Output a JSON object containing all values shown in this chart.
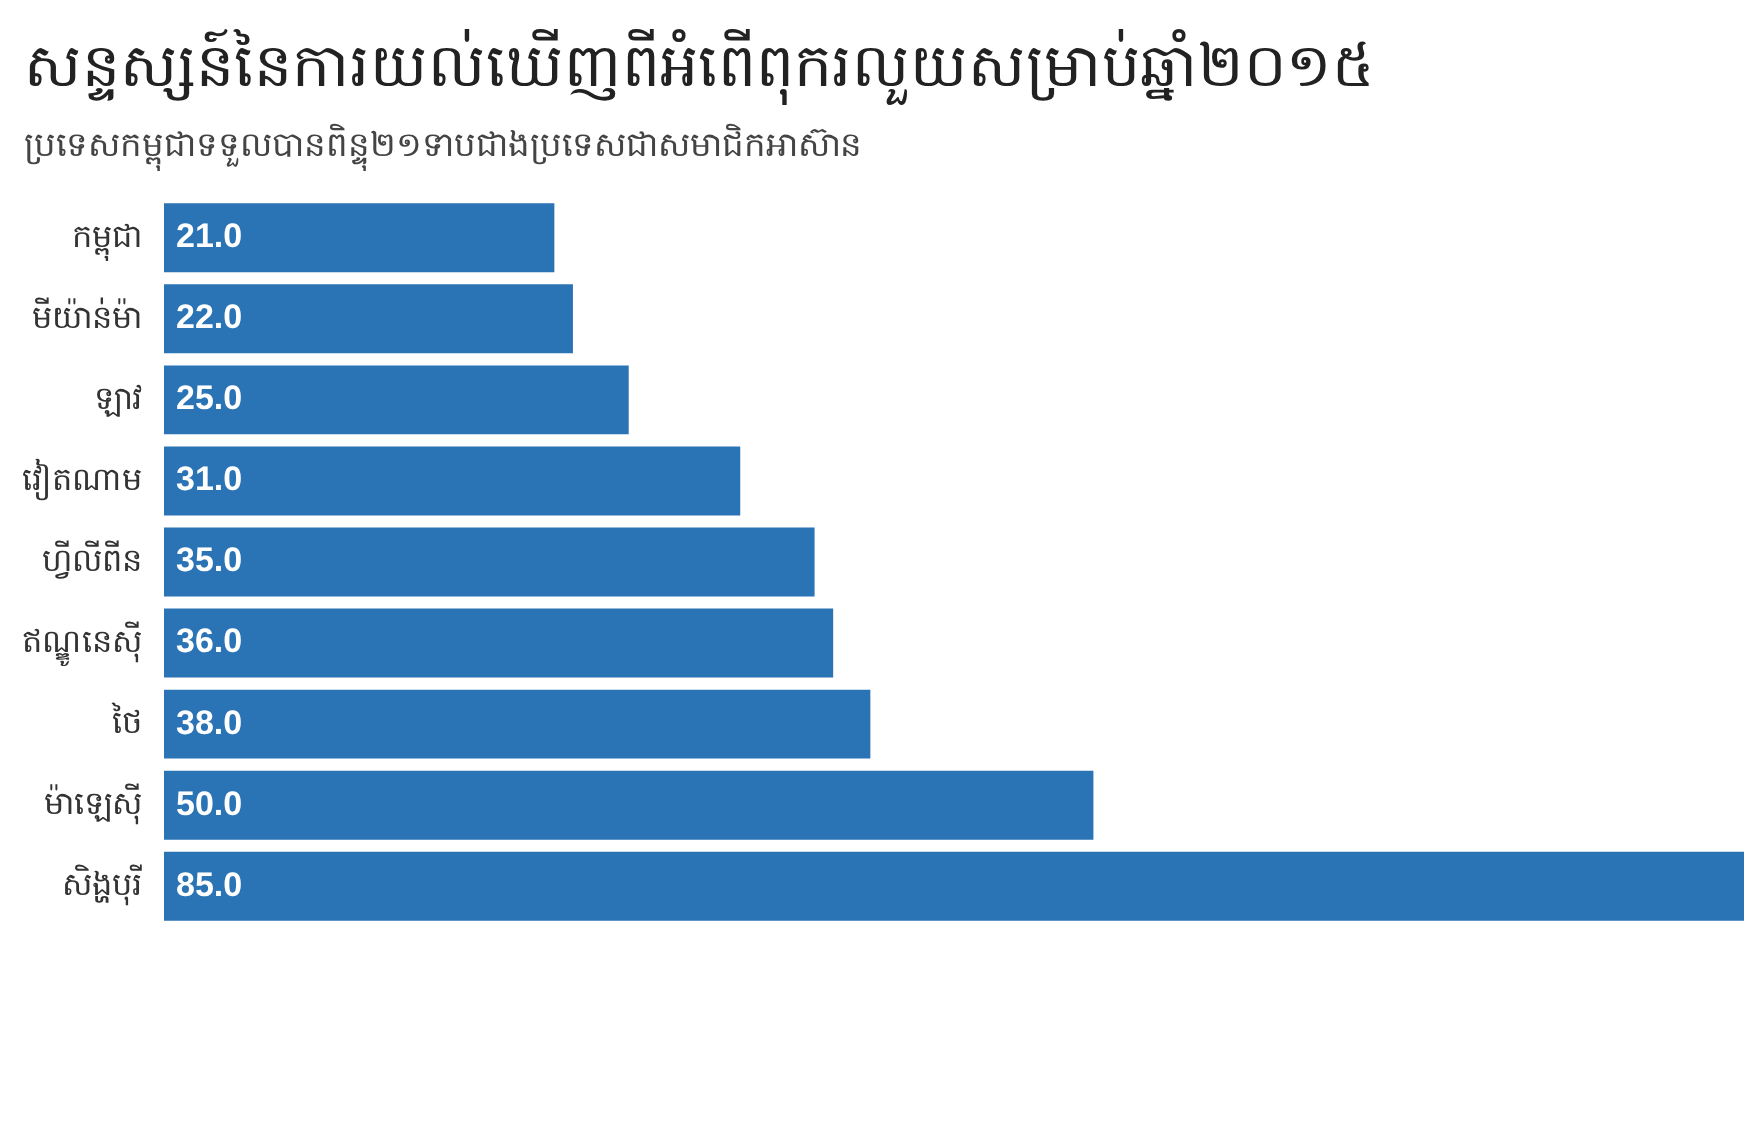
{
  "chart_data": {
    "type": "bar",
    "orientation": "horizontal",
    "title": "សន្ទស្សន៍នៃការយល់ឃើញពីអំពើពុករលួយសម្រាប់ឆ្នាំ២០១៥",
    "subtitle": "ប្រទេសកម្ពុជាទទួលបានពិន្ទុ២១ទាបជាងប្រទេសជាសមាជិកអាស៊ាន",
    "categories": [
      "កម្ពុជា",
      "មីយ៉ាន់ម៉ា",
      "ឡាវ",
      "វៀតណាម",
      "ហ្វីលីពីន",
      "ឥណ្ឌូនេស៊ី",
      "ថៃ",
      "ម៉ាឡេស៊ី",
      "សិង្ហបុរី"
    ],
    "values": [
      21,
      22,
      25,
      31,
      35,
      36,
      38,
      50,
      85
    ],
    "value_labels": [
      "21.0",
      "22.0",
      "25.0",
      "31.0",
      "35.0",
      "36.0",
      "38.0",
      "50.0",
      "85.0"
    ],
    "color": "#2a73b5"
  }
}
